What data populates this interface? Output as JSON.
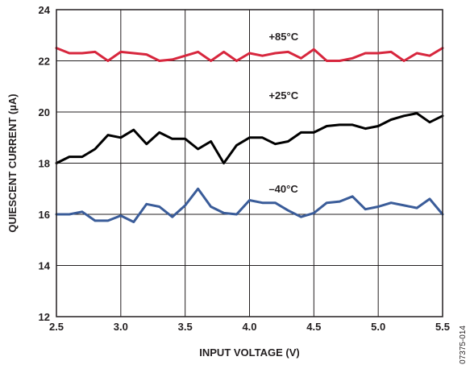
{
  "chart_data": {
    "type": "line",
    "title": "",
    "xlabel": "INPUT VOLTAGE (V)",
    "ylabel": "QUIESCENT CURRENT (µA)",
    "xlim": [
      2.5,
      5.5
    ],
    "ylim": [
      12,
      24
    ],
    "xticks": [
      2.5,
      3.0,
      3.5,
      4.0,
      4.5,
      5.0,
      5.5
    ],
    "xtick_labels": [
      "2.5",
      "3.0",
      "3.5",
      "4.0",
      "4.5",
      "5.0",
      "5.5"
    ],
    "yticks": [
      12,
      14,
      16,
      18,
      20,
      22,
      24
    ],
    "ytick_labels": [
      "12",
      "14",
      "16",
      "18",
      "20",
      "22",
      "24"
    ],
    "grid": true,
    "legend": "none",
    "figure_id": "07375-014",
    "series": [
      {
        "name": "+85°C",
        "color": "#d7263d",
        "x": [
          2.5,
          2.6,
          2.7,
          2.8,
          2.9,
          3.0,
          3.1,
          3.2,
          3.3,
          3.4,
          3.5,
          3.6,
          3.7,
          3.8,
          3.9,
          4.0,
          4.1,
          4.2,
          4.3,
          4.4,
          4.5,
          4.6,
          4.7,
          4.8,
          4.9,
          5.0,
          5.1,
          5.2,
          5.3,
          5.4,
          5.5
        ],
        "y": [
          22.5,
          22.3,
          22.3,
          22.35,
          22.0,
          22.35,
          22.3,
          22.25,
          22.0,
          22.05,
          22.2,
          22.35,
          22.0,
          22.35,
          22.0,
          22.3,
          22.2,
          22.3,
          22.35,
          22.1,
          22.45,
          22.0,
          22.0,
          22.1,
          22.3,
          22.3,
          22.35,
          22.0,
          22.3,
          22.2,
          22.5
        ]
      },
      {
        "name": "+25°C",
        "color": "#000000",
        "x": [
          2.5,
          2.6,
          2.7,
          2.8,
          2.9,
          3.0,
          3.1,
          3.2,
          3.3,
          3.4,
          3.5,
          3.6,
          3.7,
          3.8,
          3.9,
          4.0,
          4.1,
          4.2,
          4.3,
          4.4,
          4.5,
          4.6,
          4.7,
          4.8,
          4.9,
          5.0,
          5.1,
          5.2,
          5.3,
          5.4,
          5.5
        ],
        "y": [
          18.0,
          18.25,
          18.25,
          18.55,
          19.1,
          19.0,
          19.3,
          18.75,
          19.2,
          18.95,
          18.95,
          18.55,
          18.85,
          18.0,
          18.7,
          19.0,
          19.0,
          18.75,
          18.85,
          19.2,
          19.2,
          19.45,
          19.5,
          19.5,
          19.35,
          19.45,
          19.7,
          19.85,
          19.95,
          19.6,
          19.85
        ]
      },
      {
        "name": "–40°C",
        "color": "#3a5c99",
        "x": [
          2.5,
          2.6,
          2.7,
          2.8,
          2.9,
          3.0,
          3.1,
          3.2,
          3.3,
          3.4,
          3.5,
          3.6,
          3.7,
          3.8,
          3.9,
          4.0,
          4.1,
          4.2,
          4.3,
          4.4,
          4.5,
          4.6,
          4.7,
          4.8,
          4.9,
          5.0,
          5.1,
          5.2,
          5.3,
          5.4,
          5.5
        ],
        "y": [
          16.0,
          16.0,
          16.1,
          15.75,
          15.75,
          15.95,
          15.7,
          16.4,
          16.3,
          15.9,
          16.35,
          17.0,
          16.3,
          16.05,
          16.0,
          16.55,
          16.45,
          16.45,
          16.15,
          15.9,
          16.05,
          16.45,
          16.5,
          16.7,
          16.2,
          16.3,
          16.45,
          16.35,
          16.25,
          16.6,
          16.0
        ]
      }
    ],
    "annotations": [
      {
        "text": "+85°C",
        "x": 4.15,
        "y": 22.8
      },
      {
        "text": "+25°C",
        "x": 4.15,
        "y": 20.5
      },
      {
        "text": "–40°C",
        "x": 4.15,
        "y": 16.85
      }
    ]
  }
}
